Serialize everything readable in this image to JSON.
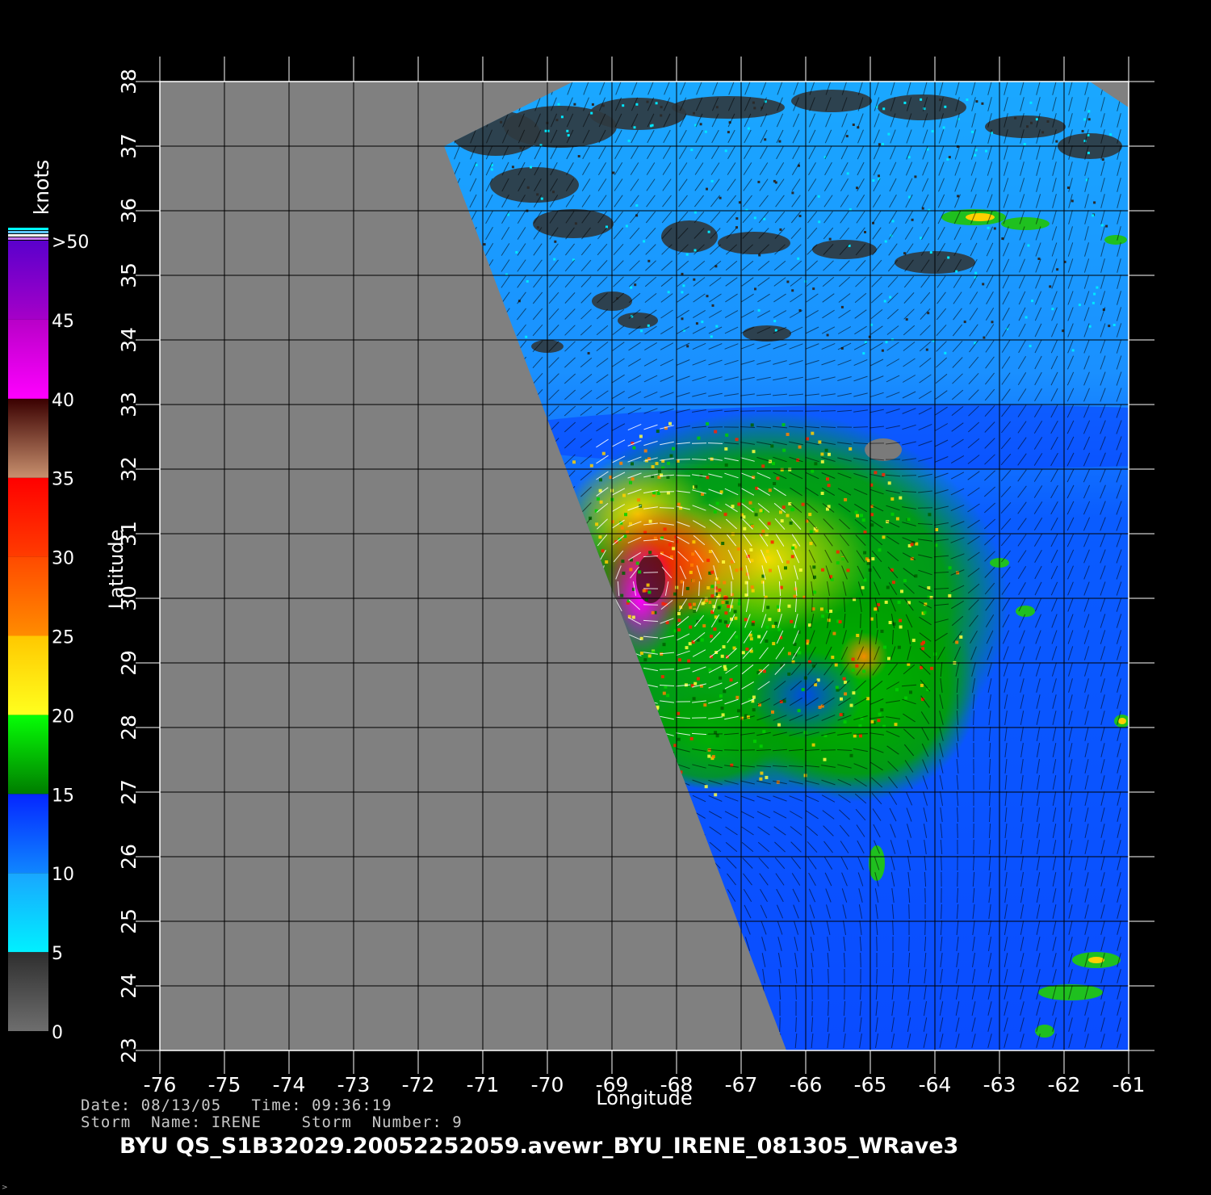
{
  "footer": {
    "date_line": "Date: 08/13/05   Time: 09:36:19",
    "storm_line": "Storm  Name: IRENE    Storm  Number: 9",
    "file_title": "BYU  QS_S1B32029.20052252059.avewr_BYU_IRENE_081305_WRave3",
    "corner_mark": ">"
  },
  "map": {
    "xlabel": "Longitude",
    "ylabel": "Latitude",
    "lon_range": [
      -76,
      -61
    ],
    "lat_range": [
      23,
      38
    ],
    "lon_ticks": [
      "-76",
      "-75",
      "-74",
      "-73",
      "-72",
      "-71",
      "-70",
      "-69",
      "-68",
      "-67",
      "-66",
      "-65",
      "-64",
      "-63",
      "-62",
      "-61"
    ],
    "lat_ticks": [
      "23",
      "24",
      "25",
      "26",
      "27",
      "28",
      "29",
      "30",
      "31",
      "32",
      "33",
      "34",
      "35",
      "36",
      "37",
      "38"
    ],
    "no_data_color": "#808080",
    "grid_color": "#000000",
    "swath_corners_lonlat": [
      [
        -71.6,
        37.0
      ],
      [
        -69.6,
        38.0
      ],
      [
        -61.6,
        38.0
      ],
      [
        -61.0,
        37.6
      ],
      [
        -61.0,
        23.0
      ],
      [
        -66.3,
        23.0
      ]
    ],
    "storm_center_lonlat": [
      -68.4,
      30.2
    ],
    "land_feature_name": "Bermuda",
    "land_feature_lonlat": [
      -64.8,
      32.3
    ]
  },
  "colorbar": {
    "unit": "knots",
    "labels": [
      "0",
      "5",
      "10",
      "15",
      "20",
      "25",
      "30",
      "35",
      "40",
      "45",
      ">50"
    ],
    "bands": [
      {
        "from": 0,
        "to": 5,
        "colors": [
          "#6e6e6e",
          "#2e2e2e"
        ]
      },
      {
        "from": 5,
        "to": 10,
        "colors": [
          "#00f0ff",
          "#19a6ff"
        ]
      },
      {
        "from": 10,
        "to": 15,
        "colors": [
          "#0f86ff",
          "#0526ff"
        ]
      },
      {
        "from": 15,
        "to": 20,
        "colors": [
          "#007d00",
          "#06ff06"
        ]
      },
      {
        "from": 20,
        "to": 25,
        "colors": [
          "#ffff1e",
          "#ffc800"
        ]
      },
      {
        "from": 25,
        "to": 30,
        "colors": [
          "#ff8c00",
          "#ff4a00"
        ]
      },
      {
        "from": 30,
        "to": 35,
        "colors": [
          "#ff3c00",
          "#ff0000"
        ]
      },
      {
        "from": 35,
        "to": 40,
        "colors": [
          "#c8906e",
          "#3a0000"
        ]
      },
      {
        "from": 40,
        "to": 45,
        "colors": [
          "#ff00ff",
          "#b800c8"
        ]
      },
      {
        "from": 45,
        "to": 50,
        "colors": [
          "#a600c8",
          "#5a00cc"
        ]
      }
    ],
    "top_stripe_colors": [
      "#00ffff",
      "#5dc7ff",
      "#ffffff",
      "#c87dff"
    ]
  }
}
